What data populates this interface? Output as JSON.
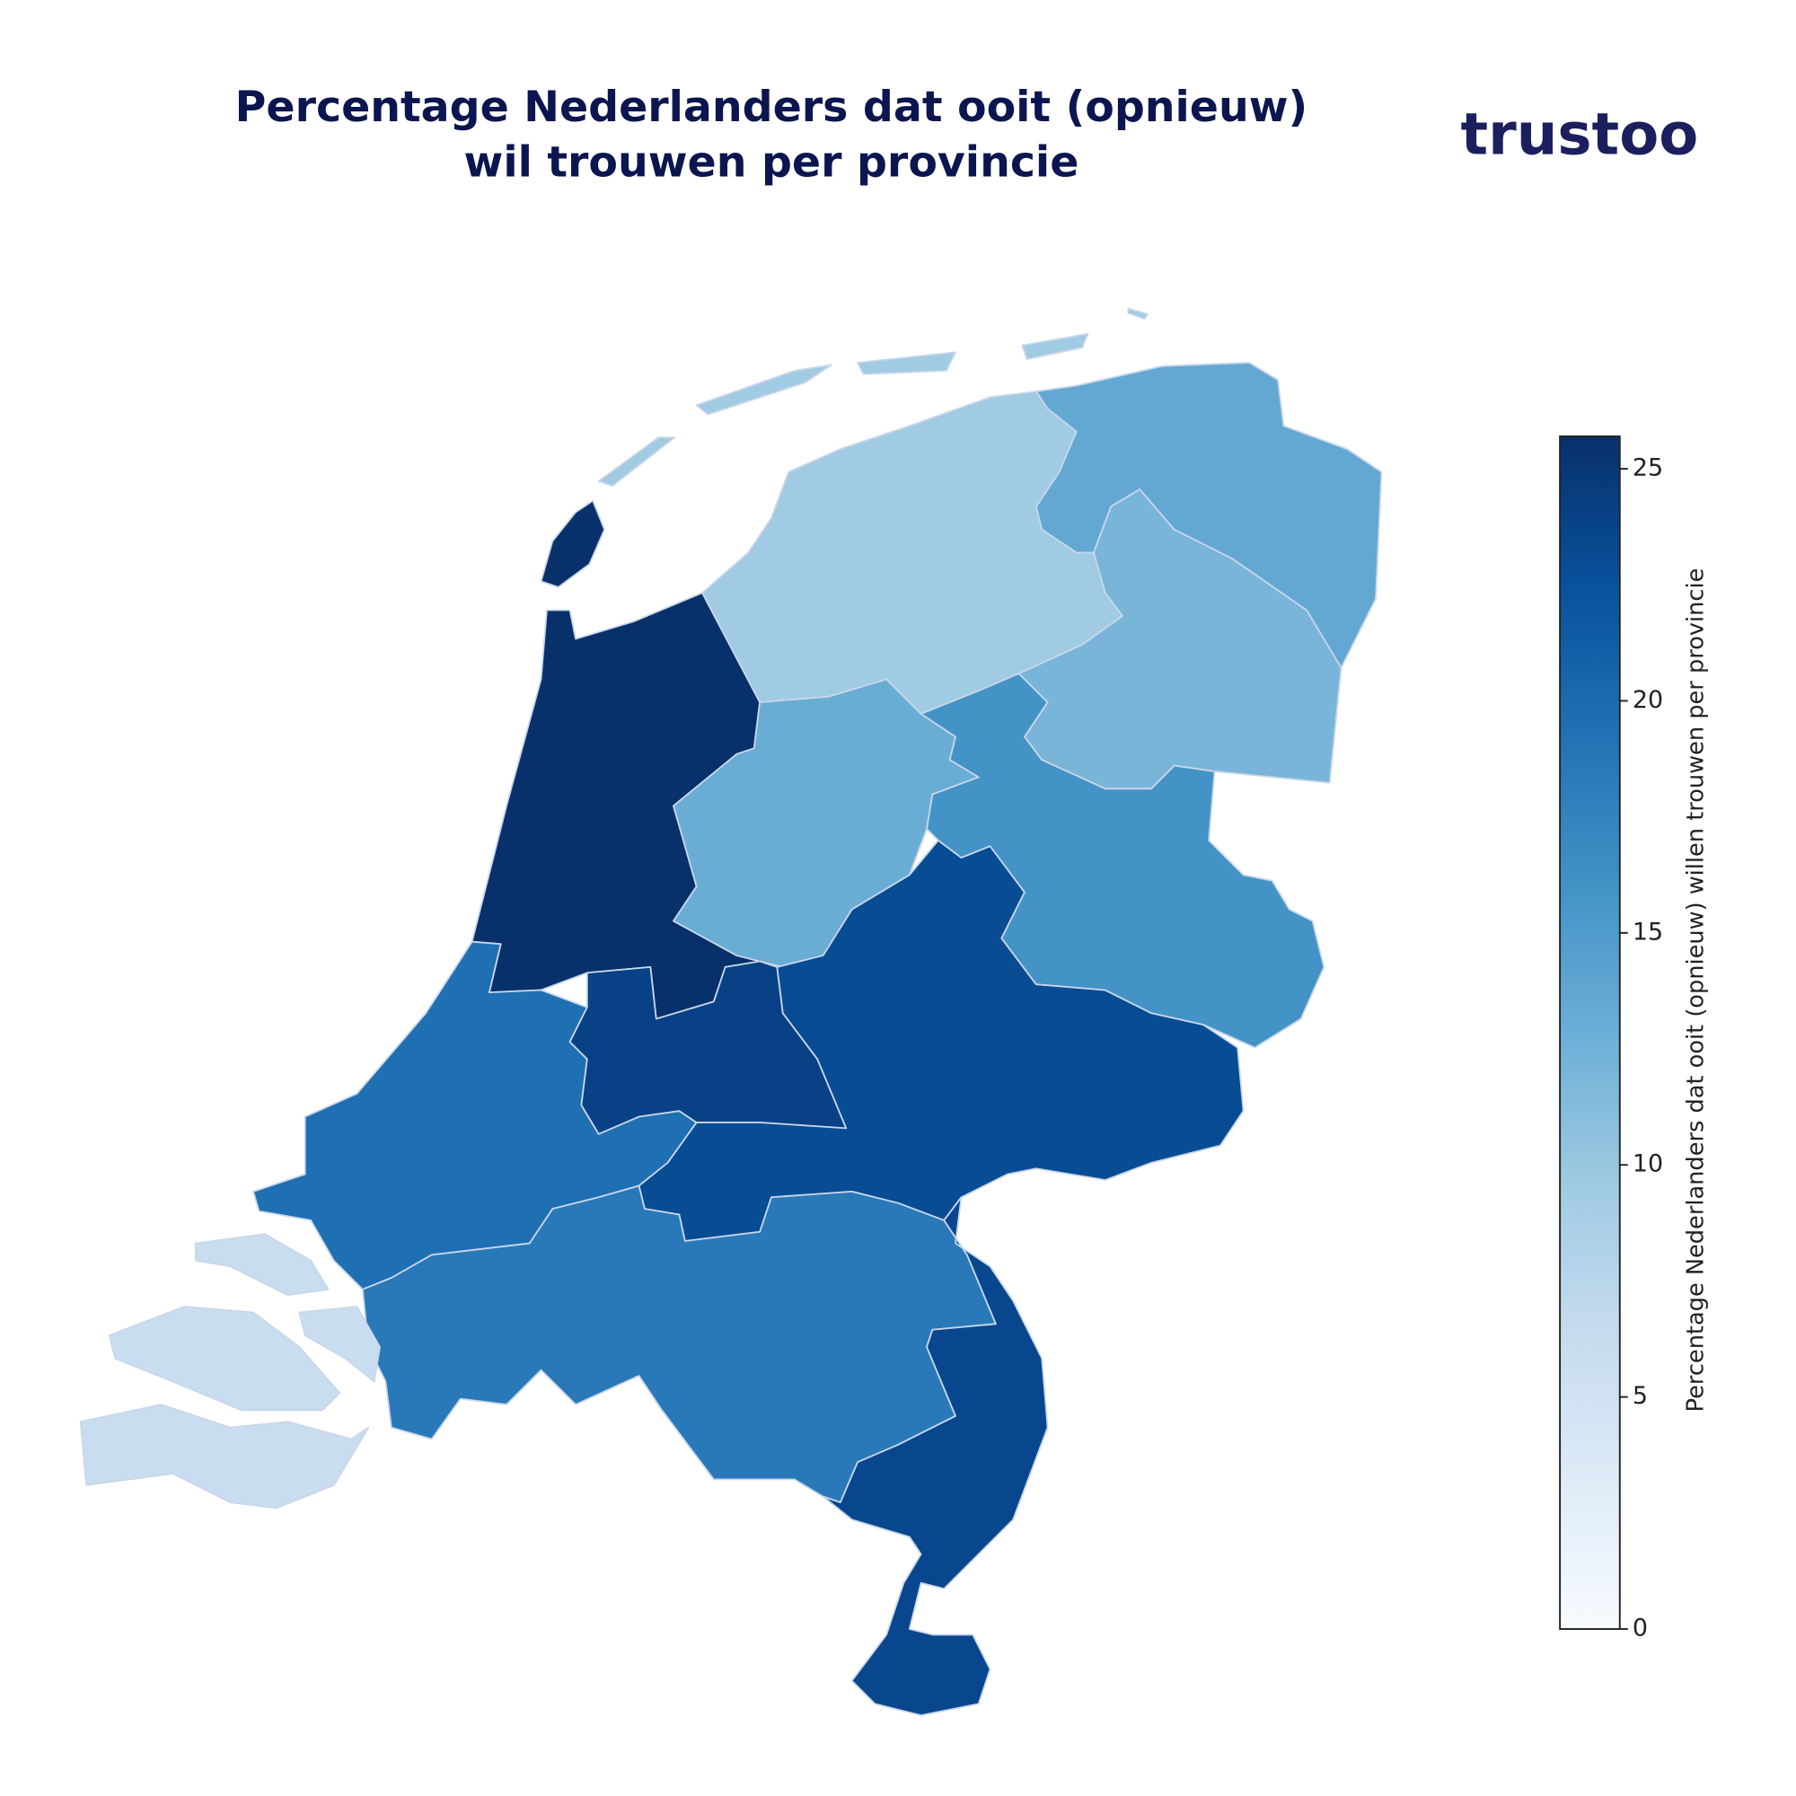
{
  "chart_data": {
    "type": "choropleth",
    "title": "Percentage Nederlanders dat ooit (opnieuw)",
    "subtitle": "wil trouwen per provincie",
    "logo": "trustoo",
    "colorbar_label": "Percentage Nederlanders dat ooit (opnieuw) willen trouwen per provincie",
    "values": [
      25.7,
      19.5,
      24,
      13,
      23,
      16,
      12,
      13.5,
      9.5,
      18.5,
      23.5,
      6
    ],
    "colormap": "Blues",
    "clim": [
      0,
      25.7
    ],
    "cticks": [
      0,
      5,
      10,
      15,
      20,
      25
    ]
  }
}
